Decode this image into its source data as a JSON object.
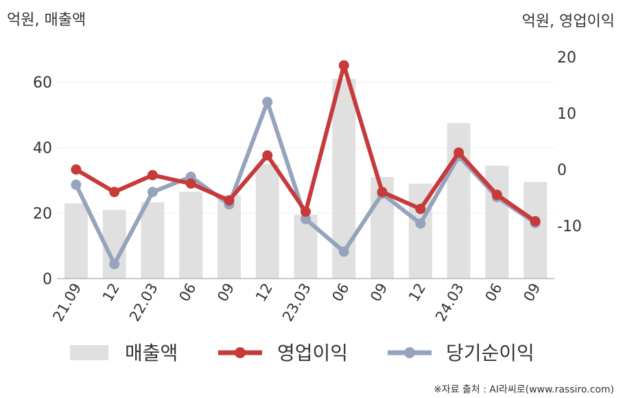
{
  "chart_data": {
    "type": "bar+line",
    "left_axis_label": "억원, 매출액",
    "right_axis_label": "억원, 영업이익",
    "categories": [
      "21.09",
      "12",
      "22.03",
      "06",
      "09",
      "12",
      "23.03",
      "06",
      "09",
      "12",
      "24.03",
      "06",
      "09"
    ],
    "left_ylim": [
      0,
      70
    ],
    "left_yticks": [
      0,
      20,
      40,
      60
    ],
    "right_ylim": [
      -20,
      20
    ],
    "right_yticks": [
      -10,
      0,
      10,
      20
    ],
    "right_ytick_labels": [
      "-10",
      "0",
      "10",
      "20"
    ],
    "series": [
      {
        "name": "매출액",
        "type": "bar",
        "axis": "left",
        "color": "#e0e0e0",
        "values": [
          23,
          21,
          23.3,
          26.5,
          25.5,
          35,
          19.5,
          61,
          31,
          29,
          47.5,
          34.5,
          29.5
        ]
      },
      {
        "name": "영업이익",
        "type": "line",
        "axis": "right",
        "color": "#c73a3a",
        "values": [
          0,
          -4,
          -1,
          -2.5,
          -5.5,
          2.5,
          -7.5,
          18.5,
          -4,
          -7,
          3,
          -4.5,
          -9.2
        ]
      },
      {
        "name": "당기순이익",
        "type": "line",
        "axis": "right",
        "color": "#95a3bd",
        "values": [
          -2.7,
          -16.8,
          -4,
          -1.3,
          -6.2,
          12,
          -8.8,
          -14.6,
          -4.3,
          -9.6,
          2.4,
          -4.9,
          -9.5
        ]
      }
    ],
    "grid": true,
    "legend_position": "bottom"
  },
  "source_text": "※자료 출처 : AI라씨로(www.rassiro.com)"
}
